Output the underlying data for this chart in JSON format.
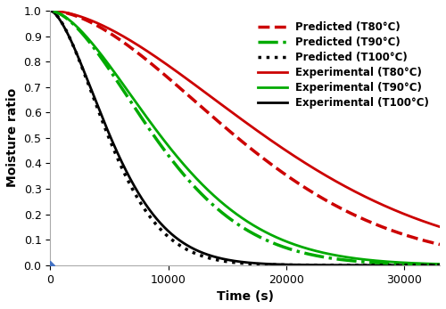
{
  "title": "",
  "xlabel": "Time (s)",
  "ylabel": "Moisture ratio",
  "xlim": [
    0,
    33000
  ],
  "ylim": [
    0,
    1.0
  ],
  "yticks": [
    0,
    0.1,
    0.2,
    0.3,
    0.4,
    0.5,
    0.6,
    0.7,
    0.8,
    0.9,
    1.0
  ],
  "xticks": [
    0,
    10000,
    20000,
    30000
  ],
  "background_color": "#ffffff",
  "exp_T80": {
    "color": "#cc0000",
    "linestyle": "-",
    "linewidth": 2.0,
    "label": "Experimental (T80°C)",
    "k": 3.2e-08,
    "n": 1.72
  },
  "exp_T90": {
    "color": "#00aa00",
    "linestyle": "-",
    "linewidth": 2.0,
    "label": "Experimental (T90°C)",
    "k": 1.9e-07,
    "n": 1.65
  },
  "exp_T100": {
    "color": "#000000",
    "linestyle": "-",
    "linewidth": 2.0,
    "label": "Experimental (T100°C)",
    "k": 8e-07,
    "n": 1.6
  },
  "pred_T80": {
    "color": "#cc0000",
    "linestyle": "--",
    "linewidth": 2.5,
    "label": "Predicted (T80°C)",
    "k": 2.8e-08,
    "n": 1.76
  },
  "pred_T90": {
    "color": "#00aa00",
    "linestyle": "-.",
    "linewidth": 2.5,
    "label": "Predicted (T90°C)",
    "k": 1.6e-07,
    "n": 1.68
  },
  "pred_T100": {
    "color": "#000000",
    "linestyle": ":",
    "linewidth": 2.5,
    "label": "Predicted (T100°C)",
    "k": 5.5e-07,
    "n": 1.65
  },
  "legend_fontsize": 8.5,
  "axis_fontsize": 10,
  "tick_fontsize": 9
}
